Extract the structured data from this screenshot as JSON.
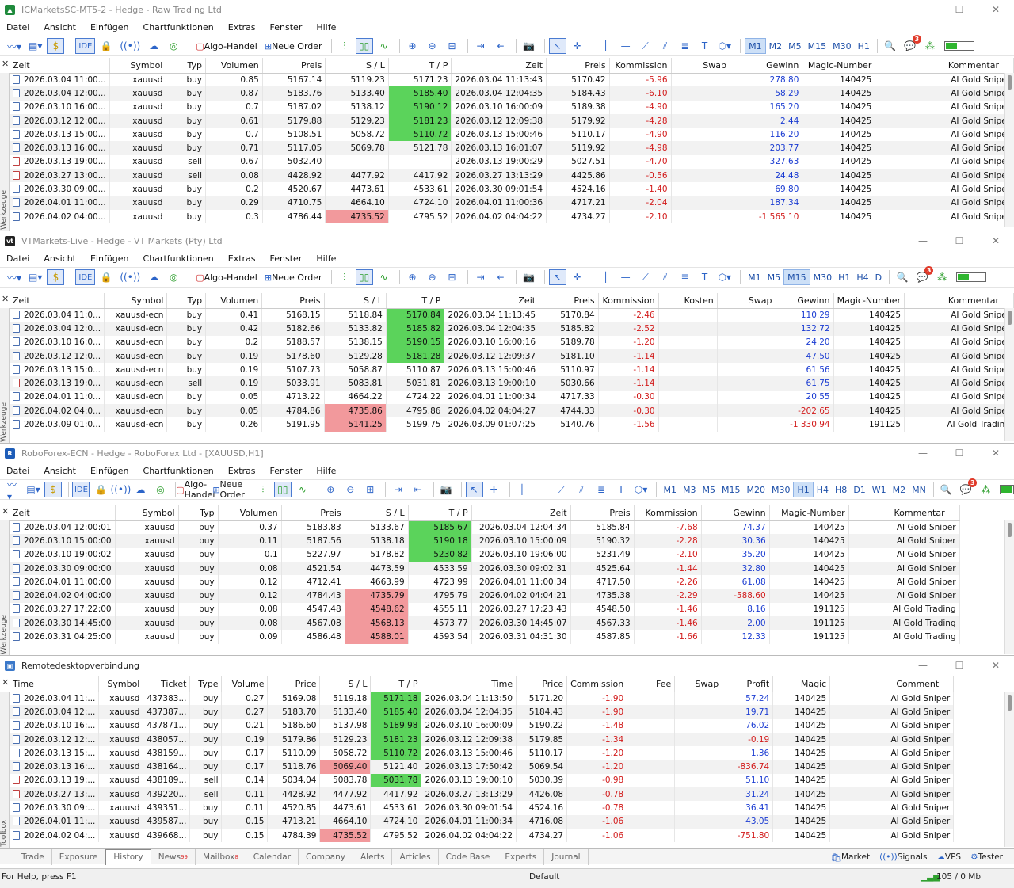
{
  "icmarkets": {
    "title": "ICMarketsSC-MT5-2 - Hedge - Raw Trading Ltd",
    "menu": [
      "Datei",
      "Ansicht",
      "Einfügen",
      "Chartfunktionen",
      "Extras",
      "Fenster",
      "Hilfe"
    ],
    "toolbar": {
      "ide": "IDE",
      "algo": "Algo-Handel",
      "neworder": "Neue Order",
      "notifications": "3",
      "timeframes": [
        "M1",
        "M2",
        "M5",
        "M15",
        "M30",
        "H1"
      ],
      "selected_tf": "M1"
    },
    "side_label": "Werkzeuge",
    "columns": [
      "Zeit",
      "Symbol",
      "Typ",
      "Volumen",
      "Preis",
      "S / L",
      "T / P",
      "Zeit",
      "Preis",
      "Kommission",
      "Swap",
      "Gewinn",
      "Magic-Number",
      "Kommentar"
    ],
    "rows": [
      [
        "2026.03.04 11:00...",
        "xauusd",
        "buy",
        "0.85",
        "5167.14",
        "5119.23",
        "5171.23",
        "2026.03.04 11:13:43",
        "5170.42",
        "-5.96",
        "",
        "278.80",
        "140425",
        "AI Gold Sniper"
      ],
      [
        "2026.03.04 12:00...",
        "xauusd",
        "buy",
        "0.87",
        "5183.76",
        "5133.40",
        "5185.40",
        "2026.03.04 12:04:35",
        "5184.43",
        "-6.10",
        "",
        "58.29",
        "140425",
        "AI Gold Sniper"
      ],
      [
        "2026.03.10 16:00...",
        "xauusd",
        "buy",
        "0.7",
        "5187.02",
        "5138.12",
        "5190.12",
        "2026.03.10 16:00:09",
        "5189.38",
        "-4.90",
        "",
        "165.20",
        "140425",
        "AI Gold Sniper"
      ],
      [
        "2026.03.12 12:00...",
        "xauusd",
        "buy",
        "0.61",
        "5179.88",
        "5129.23",
        "5181.23",
        "2026.03.12 12:09:38",
        "5179.92",
        "-4.28",
        "",
        "2.44",
        "140425",
        "AI Gold Sniper"
      ],
      [
        "2026.03.13 15:00...",
        "xauusd",
        "buy",
        "0.7",
        "5108.51",
        "5058.72",
        "5110.72",
        "2026.03.13 15:00:46",
        "5110.17",
        "-4.90",
        "",
        "116.20",
        "140425",
        "AI Gold Sniper"
      ],
      [
        "2026.03.13 16:00...",
        "xauusd",
        "buy",
        "0.71",
        "5117.05",
        "5069.78",
        "5121.78",
        "2026.03.13 16:01:07",
        "5119.92",
        "-4.98",
        "",
        "203.77",
        "140425",
        "AI Gold Sniper"
      ],
      [
        "2026.03.13 19:00...",
        "xauusd",
        "sell",
        "0.67",
        "5032.40",
        "",
        "",
        "2026.03.13 19:00:29",
        "5027.51",
        "-4.70",
        "",
        "327.63",
        "140425",
        "AI Gold Sniper"
      ],
      [
        "2026.03.27 13:00...",
        "xauusd",
        "sell",
        "0.08",
        "4428.92",
        "4477.92",
        "4417.92",
        "2026.03.27 13:13:29",
        "4425.86",
        "-0.56",
        "",
        "24.48",
        "140425",
        "AI Gold Sniper"
      ],
      [
        "2026.03.30 09:00...",
        "xauusd",
        "buy",
        "0.2",
        "4520.67",
        "4473.61",
        "4533.61",
        "2026.03.30 09:01:54",
        "4524.16",
        "-1.40",
        "",
        "69.80",
        "140425",
        "AI Gold Sniper"
      ],
      [
        "2026.04.01 11:00...",
        "xauusd",
        "buy",
        "0.29",
        "4710.75",
        "4664.10",
        "4724.10",
        "2026.04.01 11:00:36",
        "4717.21",
        "-2.04",
        "",
        "187.34",
        "140425",
        "AI Gold Sniper"
      ],
      [
        "2026.04.02 04:00...",
        "xauusd",
        "buy",
        "0.3",
        "4786.44",
        "4735.52",
        "4795.52",
        "2026.04.02 04:04:22",
        "4734.27",
        "-2.10",
        "",
        "-1 565.10",
        "140425",
        "AI Gold Sniper"
      ]
    ],
    "tp_hits": [
      2,
      3,
      4,
      5
    ],
    "sl_hits": [
      11
    ]
  },
  "vtmarkets": {
    "title": "VTMarkets-Live - Hedge - VT Markets (Pty) Ltd",
    "menu": [
      "Datei",
      "Ansicht",
      "Einfügen",
      "Chartfunktionen",
      "Extras",
      "Fenster",
      "Hilfe"
    ],
    "toolbar": {
      "ide": "IDE",
      "algo": "Algo-Handel",
      "neworder": "Neue Order",
      "notifications": "3",
      "timeframes": [
        "M1",
        "M5",
        "M15",
        "M30",
        "H1",
        "H4",
        "D"
      ],
      "selected_tf": "M15"
    },
    "side_label": "Werkzeuge",
    "columns": [
      "Zeit",
      "Symbol",
      "Typ",
      "Volumen",
      "Preis",
      "S / L",
      "T / P",
      "Zeit",
      "Preis",
      "Kommission",
      "Kosten",
      "Swap",
      "Gewinn",
      "Magic-Number",
      "Kommentar"
    ],
    "rows": [
      [
        "2026.03.04 11:0...",
        "xauusd-ecn",
        "buy",
        "0.41",
        "5168.15",
        "5118.84",
        "5170.84",
        "2026.03.04 11:13:45",
        "5170.84",
        "-2.46",
        "",
        "",
        "110.29",
        "140425",
        "AI Gold Sniper"
      ],
      [
        "2026.03.04 12:0...",
        "xauusd-ecn",
        "buy",
        "0.42",
        "5182.66",
        "5133.82",
        "5185.82",
        "2026.03.04 12:04:35",
        "5185.82",
        "-2.52",
        "",
        "",
        "132.72",
        "140425",
        "AI Gold Sniper"
      ],
      [
        "2026.03.10 16:0...",
        "xauusd-ecn",
        "buy",
        "0.2",
        "5188.57",
        "5138.15",
        "5190.15",
        "2026.03.10 16:00:16",
        "5189.78",
        "-1.20",
        "",
        "",
        "24.20",
        "140425",
        "AI Gold Sniper"
      ],
      [
        "2026.03.12 12:0...",
        "xauusd-ecn",
        "buy",
        "0.19",
        "5178.60",
        "5129.28",
        "5181.28",
        "2026.03.12 12:09:37",
        "5181.10",
        "-1.14",
        "",
        "",
        "47.50",
        "140425",
        "AI Gold Sniper"
      ],
      [
        "2026.03.13 15:0...",
        "xauusd-ecn",
        "buy",
        "0.19",
        "5107.73",
        "5058.87",
        "5110.87",
        "2026.03.13 15:00:46",
        "5110.97",
        "-1.14",
        "",
        "",
        "61.56",
        "140425",
        "AI Gold Sniper"
      ],
      [
        "2026.03.13 19:0...",
        "xauusd-ecn",
        "sell",
        "0.19",
        "5033.91",
        "5083.81",
        "5031.81",
        "2026.03.13 19:00:10",
        "5030.66",
        "-1.14",
        "",
        "",
        "61.75",
        "140425",
        "AI Gold Sniper"
      ],
      [
        "2026.04.01 11:0...",
        "xauusd-ecn",
        "buy",
        "0.05",
        "4713.22",
        "4664.22",
        "4724.22",
        "2026.04.01 11:00:34",
        "4717.33",
        "-0.30",
        "",
        "",
        "20.55",
        "140425",
        "AI Gold Sniper"
      ],
      [
        "2026.04.02 04:0...",
        "xauusd-ecn",
        "buy",
        "0.05",
        "4784.86",
        "4735.86",
        "4795.86",
        "2026.04.02 04:04:27",
        "4744.33",
        "-0.30",
        "",
        "",
        "-202.65",
        "140425",
        "AI Gold Sniper"
      ],
      [
        "2026.03.09 01:0...",
        "xauusd-ecn",
        "buy",
        "0.26",
        "5191.95",
        "5141.25",
        "5199.75",
        "2026.03.09 01:07:25",
        "5140.76",
        "-1.56",
        "",
        "",
        "-1 330.94",
        "191125",
        "AI Gold Trading"
      ]
    ],
    "tp_hits": [
      1,
      2,
      3,
      4
    ],
    "sl_hits": [
      8,
      9
    ]
  },
  "roboforex": {
    "title": "RoboForex-ECN - Hedge - RoboForex Ltd - [XAUUSD,H1]",
    "menu": [
      "Datei",
      "Ansicht",
      "Einfügen",
      "Chartfunktionen",
      "Extras",
      "Fenster",
      "Hilfe"
    ],
    "toolbar": {
      "ide": "IDE",
      "algo": "Algo-Handel",
      "neworder": "Neue Order",
      "notifications": "3",
      "timeframes": [
        "M1",
        "M3",
        "M5",
        "M15",
        "M20",
        "M30",
        "H1",
        "H4",
        "H8",
        "D1",
        "W1",
        "M2",
        "MN"
      ],
      "selected_tf": "H1"
    },
    "side_label": "Werkzeuge",
    "columns": [
      "Zeit",
      "Symbol",
      "Typ",
      "Volumen",
      "Preis",
      "S / L",
      "T / P",
      "Zeit",
      "Preis",
      "Kommission",
      "Gewinn",
      "Magic-Number",
      "Kommentar"
    ],
    "rows": [
      [
        "2026.03.04 12:00:01",
        "xauusd",
        "buy",
        "0.37",
        "5183.83",
        "5133.67",
        "5185.67",
        "2026.03.04 12:04:34",
        "5185.84",
        "-7.68",
        "74.37",
        "140425",
        "AI Gold Sniper"
      ],
      [
        "2026.03.10 15:00:00",
        "xauusd",
        "buy",
        "0.11",
        "5187.56",
        "5138.18",
        "5190.18",
        "2026.03.10 15:00:09",
        "5190.32",
        "-2.28",
        "30.36",
        "140425",
        "AI Gold Sniper"
      ],
      [
        "2026.03.10 19:00:02",
        "xauusd",
        "buy",
        "0.1",
        "5227.97",
        "5178.82",
        "5230.82",
        "2026.03.10 19:06:00",
        "5231.49",
        "-2.10",
        "35.20",
        "140425",
        "AI Gold Sniper"
      ],
      [
        "2026.03.30 09:00:00",
        "xauusd",
        "buy",
        "0.08",
        "4521.54",
        "4473.59",
        "4533.59",
        "2026.03.30 09:02:31",
        "4525.64",
        "-1.44",
        "32.80",
        "140425",
        "AI Gold Sniper"
      ],
      [
        "2026.04.01 11:00:00",
        "xauusd",
        "buy",
        "0.12",
        "4712.41",
        "4663.99",
        "4723.99",
        "2026.04.01 11:00:34",
        "4717.50",
        "-2.26",
        "61.08",
        "140425",
        "AI Gold Sniper"
      ],
      [
        "2026.04.02 04:00:00",
        "xauusd",
        "buy",
        "0.12",
        "4784.43",
        "4735.79",
        "4795.79",
        "2026.04.02 04:04:21",
        "4735.38",
        "-2.29",
        "-588.60",
        "140425",
        "AI Gold Sniper"
      ],
      [
        "2026.03.27 17:22:00",
        "xauusd",
        "buy",
        "0.08",
        "4547.48",
        "4548.62",
        "4555.11",
        "2026.03.27 17:23:43",
        "4548.50",
        "-1.46",
        "8.16",
        "191125",
        "AI Gold Trading"
      ],
      [
        "2026.03.30 14:45:00",
        "xauusd",
        "buy",
        "0.08",
        "4567.08",
        "4568.13",
        "4573.77",
        "2026.03.30 14:45:07",
        "4567.33",
        "-1.46",
        "2.00",
        "191125",
        "AI Gold Trading"
      ],
      [
        "2026.03.31 04:25:00",
        "xauusd",
        "buy",
        "0.09",
        "4586.48",
        "4588.01",
        "4593.54",
        "2026.03.31 04:31:30",
        "4587.85",
        "-1.66",
        "12.33",
        "191125",
        "AI Gold Trading"
      ]
    ],
    "tp_hits": [
      1,
      2,
      3
    ],
    "sl_hits": [
      6,
      7,
      8,
      9
    ]
  },
  "remote": {
    "title": "Remotedesktopverbindung",
    "side_label": "Toolbox",
    "columns": [
      "Time",
      "Symbol",
      "Ticket",
      "Type",
      "Volume",
      "Price",
      "S / L",
      "T / P",
      "Time",
      "Price",
      "Commission",
      "Fee",
      "Swap",
      "Profit",
      "Magic",
      "Comment"
    ],
    "rows": [
      [
        "2026.03.04 11:...",
        "xauusd",
        "437383...",
        "buy",
        "0.27",
        "5169.08",
        "5119.18",
        "5171.18",
        "2026.03.04 11:13:50",
        "5171.20",
        "-1.90",
        "",
        "",
        "57.24",
        "140425",
        "AI Gold Sniper"
      ],
      [
        "2026.03.04 12:...",
        "xauusd",
        "437387...",
        "buy",
        "0.27",
        "5183.70",
        "5133.40",
        "5185.40",
        "2026.03.04 12:04:35",
        "5184.43",
        "-1.90",
        "",
        "",
        "19.71",
        "140425",
        "AI Gold Sniper"
      ],
      [
        "2026.03.10 16:...",
        "xauusd",
        "437871...",
        "buy",
        "0.21",
        "5186.60",
        "5137.98",
        "5189.98",
        "2026.03.10 16:00:09",
        "5190.22",
        "-1.48",
        "",
        "",
        "76.02",
        "140425",
        "AI Gold Sniper"
      ],
      [
        "2026.03.12 12:...",
        "xauusd",
        "438057...",
        "buy",
        "0.19",
        "5179.86",
        "5129.23",
        "5181.23",
        "2026.03.12 12:09:38",
        "5179.85",
        "-1.34",
        "",
        "",
        "-0.19",
        "140425",
        "AI Gold Sniper"
      ],
      [
        "2026.03.13 15:...",
        "xauusd",
        "438159...",
        "buy",
        "0.17",
        "5110.09",
        "5058.72",
        "5110.72",
        "2026.03.13 15:00:46",
        "5110.17",
        "-1.20",
        "",
        "",
        "1.36",
        "140425",
        "AI Gold Sniper"
      ],
      [
        "2026.03.13 16:...",
        "xauusd",
        "438164...",
        "buy",
        "0.17",
        "5118.76",
        "5069.40",
        "5121.40",
        "2026.03.13 17:50:42",
        "5069.54",
        "-1.20",
        "",
        "",
        "-836.74",
        "140425",
        "AI Gold Sniper"
      ],
      [
        "2026.03.13 19:...",
        "xauusd",
        "438189...",
        "sell",
        "0.14",
        "5034.04",
        "5083.78",
        "5031.78",
        "2026.03.13 19:00:10",
        "5030.39",
        "-0.98",
        "",
        "",
        "51.10",
        "140425",
        "AI Gold Sniper"
      ],
      [
        "2026.03.27 13:...",
        "xauusd",
        "439220...",
        "sell",
        "0.11",
        "4428.92",
        "4477.92",
        "4417.92",
        "2026.03.27 13:13:29",
        "4426.08",
        "-0.78",
        "",
        "",
        "31.24",
        "140425",
        "AI Gold Sniper"
      ],
      [
        "2026.03.30 09:...",
        "xauusd",
        "439351...",
        "buy",
        "0.11",
        "4520.85",
        "4473.61",
        "4533.61",
        "2026.03.30 09:01:54",
        "4524.16",
        "-0.78",
        "",
        "",
        "36.41",
        "140425",
        "AI Gold Sniper"
      ],
      [
        "2026.04.01 11:...",
        "xauusd",
        "439587...",
        "buy",
        "0.15",
        "4713.21",
        "4664.10",
        "4724.10",
        "2026.04.01 11:00:34",
        "4716.08",
        "-1.06",
        "",
        "",
        "43.05",
        "140425",
        "AI Gold Sniper"
      ],
      [
        "2026.04.02 04:...",
        "xauusd",
        "439668...",
        "buy",
        "0.15",
        "4784.39",
        "4735.52",
        "4795.52",
        "2026.04.02 04:04:22",
        "4734.27",
        "-1.06",
        "",
        "",
        "-751.80",
        "140425",
        "AI Gold Sniper"
      ]
    ],
    "tp_hits": [
      1,
      2,
      3,
      4,
      5,
      7
    ],
    "sl_hits": [
      6,
      11
    ],
    "tabs": [
      "Trade",
      "Exposure",
      "History",
      "News",
      "Mailbox",
      "Calendar",
      "Company",
      "Alerts",
      "Articles",
      "Code Base",
      "Experts",
      "Journal"
    ],
    "news_badge": "99",
    "mailbox_badge": "8",
    "active_tab": "History",
    "right_tabs": [
      "Market",
      "Signals",
      "VPS",
      "Tester"
    ],
    "status_help": "For Help, press F1",
    "status_profile": "Default",
    "status_conn": "105 / 0 Mb"
  },
  "colors": {
    "tp_green": "#5bd35b",
    "sl_red": "#f2999c",
    "profit_blue": "#1b3cd2",
    "loss_red": "#d21b1b",
    "accent": "#2c64c8"
  }
}
